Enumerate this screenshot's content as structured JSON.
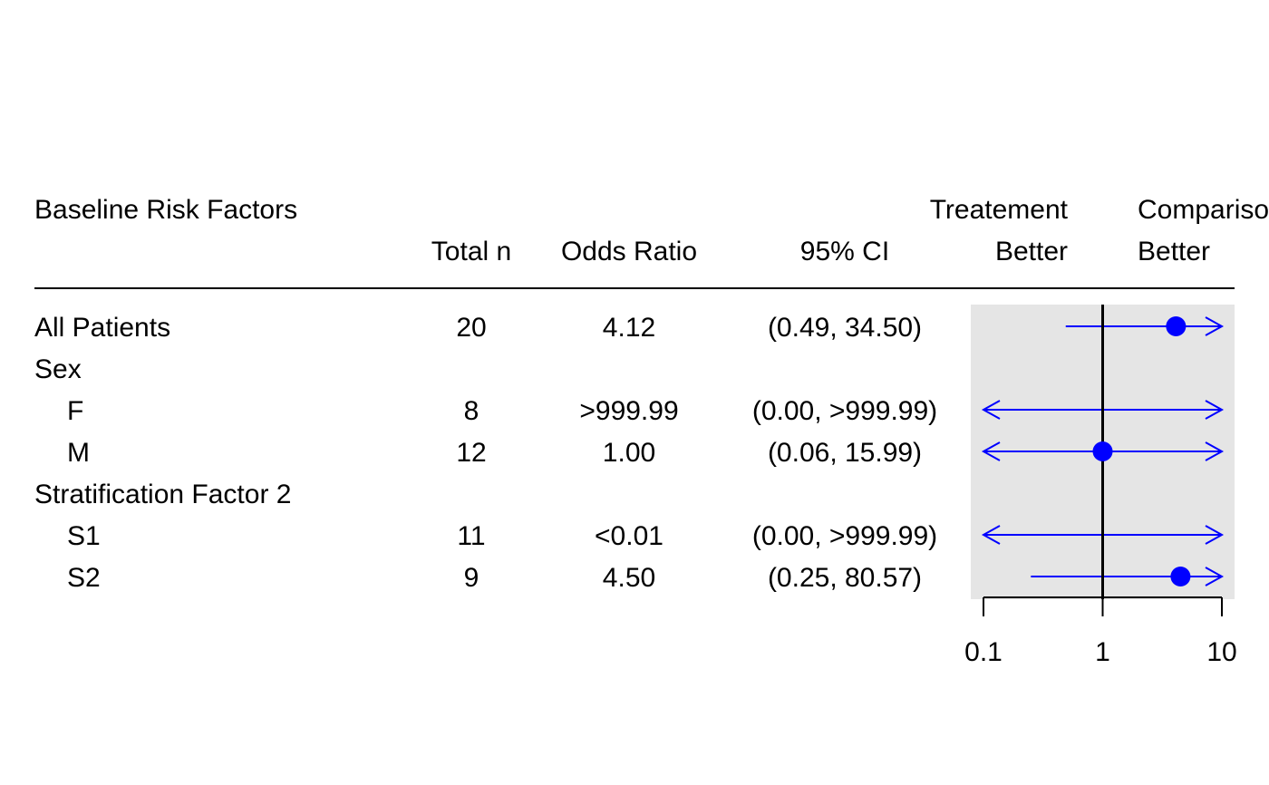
{
  "colors": {
    "background": "#ffffff",
    "panel_background": "#e5e5e5",
    "marker": "#0000ff",
    "reference_line": "#000000",
    "text": "#000000"
  },
  "headers": {
    "factor": "Baseline Risk Factors",
    "total_n": "Total n",
    "odds_ratio": "Odds Ratio",
    "ci": "95% CI",
    "left_better": [
      "Treatement",
      "Better"
    ],
    "right_better": [
      "Comparison",
      "Better"
    ]
  },
  "chart_data": {
    "type": "forest",
    "scale": "log",
    "xlim": [
      0.1,
      10
    ],
    "reference_value": 1,
    "x_ticks": [
      {
        "value": 0.1,
        "label": "0.1"
      },
      {
        "value": 1,
        "label": "1"
      },
      {
        "value": 10,
        "label": "10"
      }
    ],
    "rows": [
      {
        "label": "All Patients",
        "indent": 0,
        "n": "20",
        "or_text": "4.12",
        "ci_text": "(0.49, 34.50)",
        "or": 4.12,
        "lower": 0.49,
        "upper": 34.5,
        "point_shown": true
      },
      {
        "label": "Sex",
        "indent": 0,
        "n": "",
        "or_text": "",
        "ci_text": "",
        "group_header": true
      },
      {
        "label": "F",
        "indent": 1,
        "n": "8",
        "or_text": ">999.99",
        "ci_text": "(0.00, >999.99)",
        "or": 1000,
        "lower": 0.0001,
        "upper": 1000,
        "point_shown": false
      },
      {
        "label": "M",
        "indent": 1,
        "n": "12",
        "or_text": "1.00",
        "ci_text": "(0.06, 15.99)",
        "or": 1.0,
        "lower": 0.06,
        "upper": 15.99,
        "point_shown": true
      },
      {
        "label": "Stratification Factor 2",
        "indent": 0,
        "n": "",
        "or_text": "",
        "ci_text": "",
        "group_header": true
      },
      {
        "label": "S1",
        "indent": 1,
        "n": "11",
        "or_text": "<0.01",
        "ci_text": "(0.00, >999.99)",
        "or": 0.005,
        "lower": 0.0001,
        "upper": 1000,
        "point_shown": false
      },
      {
        "label": "S2",
        "indent": 1,
        "n": "9",
        "or_text": "4.50",
        "ci_text": "(0.25, 80.57)",
        "or": 4.5,
        "lower": 0.25,
        "upper": 80.57,
        "point_shown": true
      }
    ]
  }
}
